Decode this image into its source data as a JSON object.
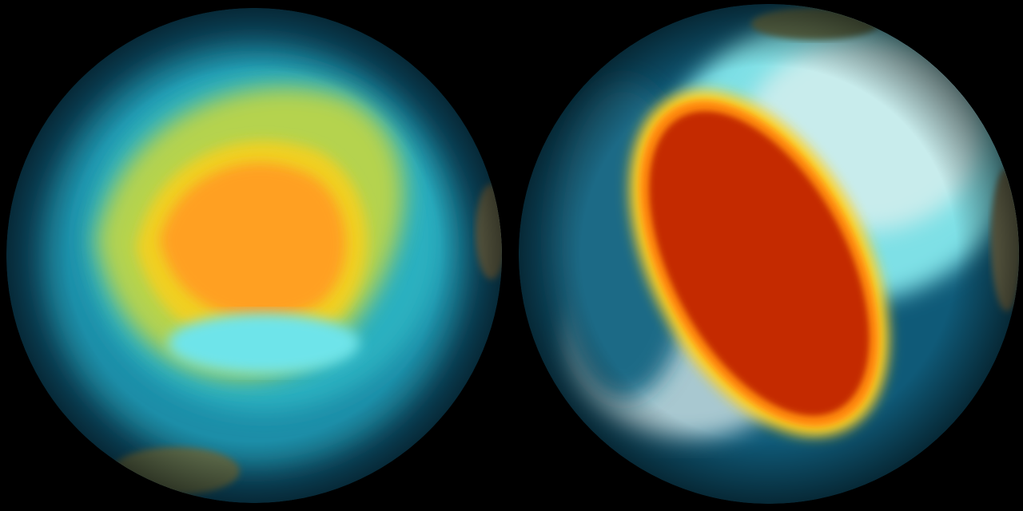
{
  "globes": [
    {
      "name": "left-globe",
      "ocean": "#0e5a7a",
      "band": "#2bb8c8",
      "ring": "#e8e020",
      "core": "#ff9a1a"
    },
    {
      "name": "right-globe",
      "ocean": "#0e5a7a",
      "band": "#3cd0d8",
      "ring": "#ffcc20",
      "core": "#c82800"
    }
  ],
  "background": "#000000"
}
